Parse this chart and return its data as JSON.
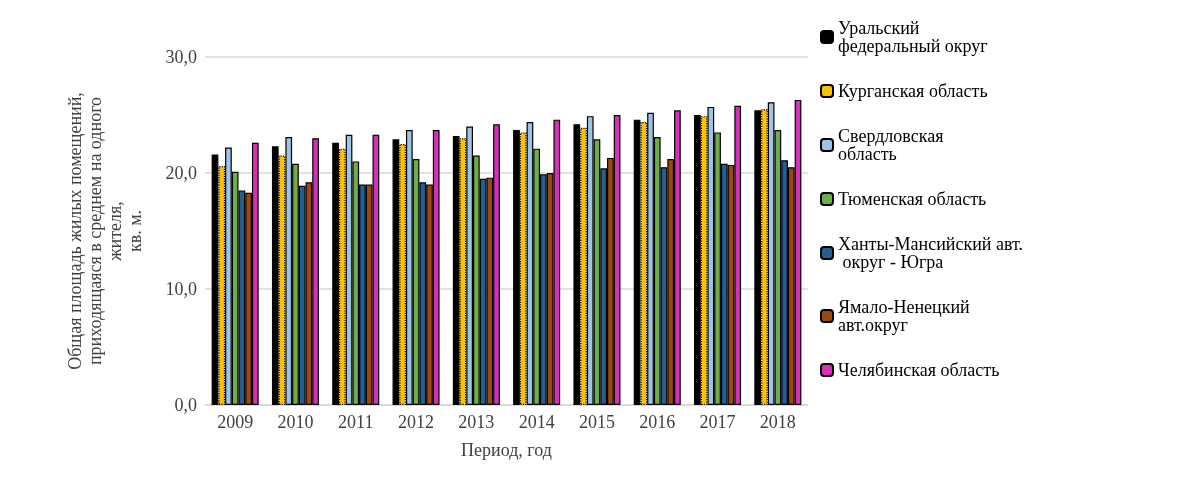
{
  "chart_data": {
    "type": "bar",
    "xlabel": "Период, год",
    "ylabel": "Общая площадь жилых помещений,\nприходящаяся в среднем на одного\nжителя,\nкв. м.",
    "categories": [
      "2009",
      "2010",
      "2011",
      "2012",
      "2013",
      "2014",
      "2015",
      "2016",
      "2017",
      "2018"
    ],
    "series": [
      {
        "name": "Уральский федеральный округ",
        "color": "#000000",
        "values": [
          21.6,
          22.3,
          22.6,
          22.9,
          23.2,
          23.7,
          24.2,
          24.6,
          25.0,
          25.4
        ]
      },
      {
        "name": "Курганская область",
        "color": "#ffc000",
        "values": [
          20.6,
          21.5,
          22.1,
          22.5,
          23.0,
          23.5,
          23.9,
          24.4,
          24.9,
          25.5
        ]
      },
      {
        "name": "Свердловская область",
        "color": "#9dc3e6",
        "values": [
          22.2,
          23.1,
          23.3,
          23.7,
          24.0,
          24.4,
          24.9,
          25.2,
          25.7,
          26.1
        ]
      },
      {
        "name": "Тюменская область",
        "color": "#70ad47",
        "values": [
          20.1,
          20.8,
          21.0,
          21.2,
          21.5,
          22.1,
          22.9,
          23.1,
          23.5,
          23.7
        ]
      },
      {
        "name": "Ханты-Мансийский авт. округ - Югра",
        "color": "#255e91",
        "values": [
          18.5,
          18.9,
          19.0,
          19.2,
          19.5,
          19.9,
          20.4,
          20.5,
          20.8,
          21.1
        ]
      },
      {
        "name": "Ямало-Ненецкий авт.округ",
        "color": "#9e480e",
        "values": [
          18.3,
          19.2,
          19.0,
          19.0,
          19.6,
          20.0,
          21.3,
          21.2,
          20.7,
          20.5
        ]
      },
      {
        "name": "Челябинская область",
        "color": "#d630b8",
        "values": [
          22.6,
          23.0,
          23.3,
          23.7,
          24.2,
          24.6,
          25.0,
          25.4,
          25.8,
          26.3
        ]
      }
    ],
    "ylim": [
      0,
      30
    ],
    "yticks": [
      {
        "value": 0,
        "label": "0,0"
      },
      {
        "value": 10,
        "label": "10,0"
      },
      {
        "value": 20,
        "label": "20,0"
      },
      {
        "value": 30,
        "label": "30,0"
      }
    ],
    "grid": "y",
    "legend": "right"
  }
}
